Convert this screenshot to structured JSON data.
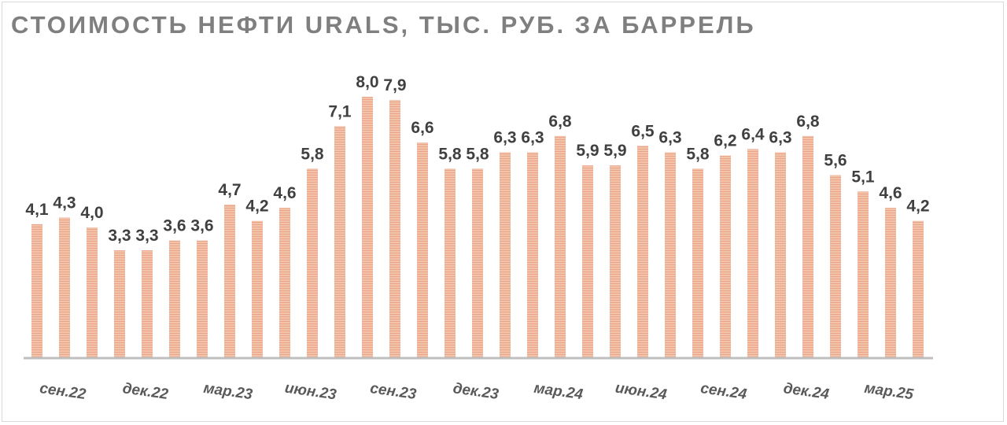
{
  "chart_data": {
    "type": "bar",
    "title": "СТОИМОСТЬ НЕФТИ URALS, ТЫС. РУБ. ЗА БАРРЕЛЬ",
    "xlabel": "",
    "ylabel": "",
    "ylim": [
      0,
      8.5
    ],
    "grid": false,
    "bar_color": "#f0b49a",
    "axis_color": "#bfbfbf",
    "values": [
      4.1,
      4.3,
      4.0,
      3.3,
      3.3,
      3.6,
      3.6,
      4.7,
      4.2,
      4.6,
      5.8,
      7.1,
      8.0,
      7.9,
      6.6,
      5.8,
      5.8,
      6.3,
      6.3,
      6.8,
      5.9,
      5.9,
      6.5,
      6.3,
      5.8,
      6.2,
      6.4,
      6.3,
      6.8,
      5.6,
      5.1,
      4.6,
      4.2
    ],
    "value_labels": [
      "4,1",
      "4,3",
      "4,0",
      "3,3",
      "3,3",
      "3,6",
      "3,6",
      "4,7",
      "4,2",
      "4,6",
      "5,8",
      "7,1",
      "8,0",
      "7,9",
      "6,6",
      "5,8",
      "5,8",
      "6,3",
      "6,3",
      "6,8",
      "5,9",
      "5,9",
      "6,5",
      "6,3",
      "5,8",
      "6,2",
      "6,4",
      "6,3",
      "6,8",
      "5,6",
      "5,1",
      "4,6",
      "4,2"
    ],
    "tick_labels": [
      "сен.22",
      "дек.22",
      "мар.23",
      "июн.23",
      "сен.23",
      "дек.23",
      "мар.24",
      "июн.24",
      "сен.24",
      "дек.24",
      "мар.25"
    ],
    "tick_every": 3
  }
}
